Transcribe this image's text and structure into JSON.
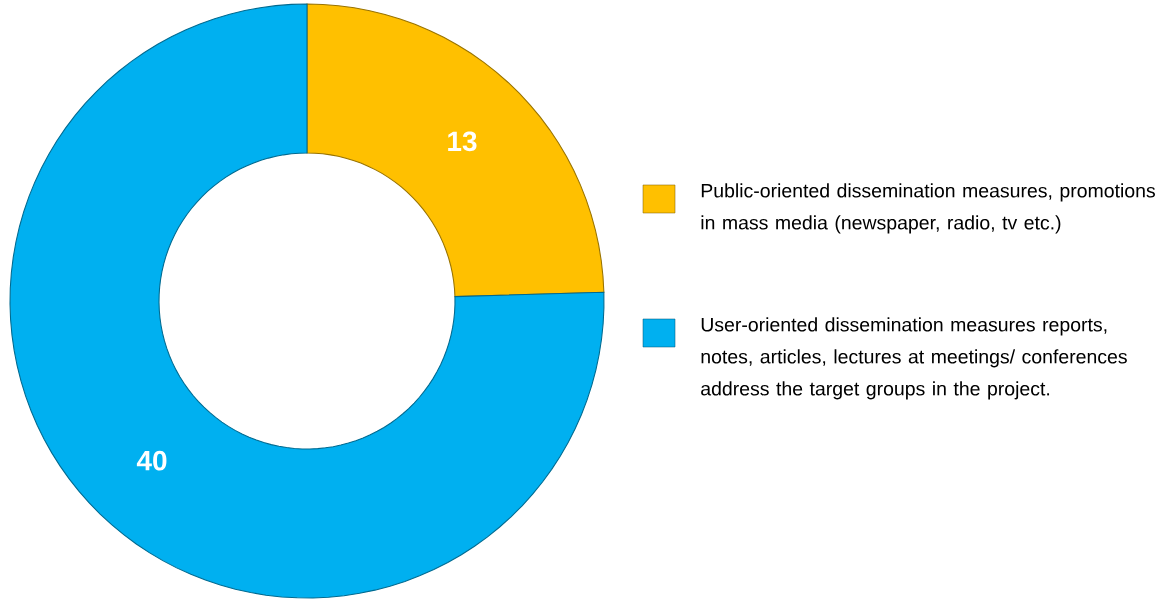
{
  "chart_data": {
    "type": "donut",
    "categories": [
      "Public-oriented dissemination measures, promotions in mass media (newspaper, radio, tv etc.)",
      "User-oriented dissemination measures reports, notes, articles, lectures at meetings/ conferences address the target groups in the project."
    ],
    "values": [
      13,
      40
    ],
    "colors": [
      "#ffc000",
      "#00b0f0"
    ],
    "data_labels": true,
    "legend": "right"
  }
}
